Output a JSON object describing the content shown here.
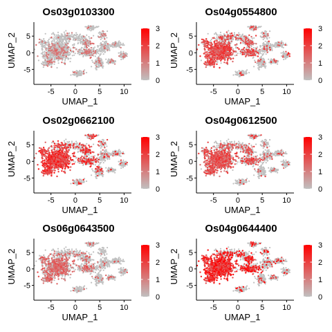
{
  "chart_data": {
    "type": "scatter",
    "description_kind": "UMAP feature plots",
    "xlabel": "UMAP_1",
    "ylabel": "UMAP_2",
    "xlim": [
      -8.5,
      11.5
    ],
    "ylim": [
      -9.5,
      9.2
    ],
    "x_ticks": [
      -5,
      0,
      5,
      10
    ],
    "y_ticks": [
      -5,
      0,
      5
    ],
    "color_low": "#c0c0c0",
    "color_high": "#ff0000",
    "legend": {
      "min": 0,
      "max": 3,
      "ticks": [
        0,
        1,
        2,
        3
      ],
      "placement": "right"
    },
    "panels": [
      {
        "title": "Os03g0103300",
        "hotspot": "diffuse-left-and-right-arm",
        "expressing_fraction": 0.25,
        "mean_level": 1.2
      },
      {
        "title": "Os04g0554800",
        "hotspot": "left-lobe",
        "expressing_fraction": 0.45,
        "mean_level": 2.0
      },
      {
        "title": "Os02g0662100",
        "hotspot": "left-lobe-dense",
        "expressing_fraction": 0.55,
        "mean_level": 2.3
      },
      {
        "title": "Os04g0612500",
        "hotspot": "left-lobe",
        "expressing_fraction": 0.45,
        "mean_level": 1.9
      },
      {
        "title": "Os06g0643500",
        "hotspot": "left-lobe-diffuse",
        "expressing_fraction": 0.3,
        "mean_level": 1.5
      },
      {
        "title": "Os04g0644400",
        "hotspot": "left-lobe-very-dense",
        "expressing_fraction": 0.65,
        "mean_level": 2.6
      }
    ]
  }
}
